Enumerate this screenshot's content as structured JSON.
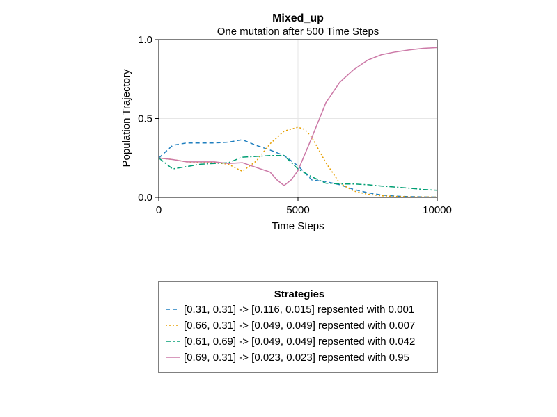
{
  "chart_data": {
    "type": "line",
    "title": "Mixed_up",
    "subtitle": "One mutation after 500 Time Steps",
    "xlabel": "Time Steps",
    "ylabel": "Population Trajectory",
    "xlim": [
      0,
      10000
    ],
    "ylim": [
      0,
      1.0
    ],
    "xticks": [
      "0",
      "5000",
      "10000"
    ],
    "yticks": [
      "0.0",
      "0.5",
      "1.0"
    ],
    "grid": true,
    "legend": {
      "title": "Strategies",
      "placement": "bottom"
    },
    "series": [
      {
        "name": "[0.31, 0.31] -> [0.116, 0.015] repsented with 0.001",
        "color": "#1f7fbf",
        "dash": "dashed",
        "x": [
          0,
          500,
          1000,
          1500,
          2000,
          2500,
          3000,
          3500,
          4000,
          4500,
          5000,
          5500,
          6000,
          6500,
          7000,
          7500,
          8000,
          8500,
          9000,
          9500,
          10000
        ],
        "y": [
          0.25,
          0.33,
          0.345,
          0.345,
          0.345,
          0.35,
          0.365,
          0.33,
          0.3,
          0.265,
          0.2,
          0.11,
          0.1,
          0.08,
          0.05,
          0.03,
          0.015,
          0.008,
          0.005,
          0.003,
          0.002
        ]
      },
      {
        "name": "[0.66, 0.31] -> [0.049, 0.049] repsented with 0.007",
        "color": "#e69f00",
        "dash": "dotted",
        "x": [
          0,
          500,
          1000,
          1500,
          2000,
          2500,
          3000,
          3500,
          4000,
          4500,
          5000,
          5250,
          5500,
          6000,
          6500,
          7000,
          7500,
          8000,
          8500,
          9000,
          9500,
          10000
        ],
        "y": [
          0.25,
          0.24,
          0.225,
          0.22,
          0.22,
          0.21,
          0.165,
          0.23,
          0.34,
          0.42,
          0.445,
          0.43,
          0.38,
          0.22,
          0.09,
          0.04,
          0.02,
          0.01,
          0.006,
          0.004,
          0.003,
          0.002
        ]
      },
      {
        "name": "[0.61, 0.69] -> [0.049, 0.049] repsented with 0.042",
        "color": "#009e73",
        "dash": "dashdot",
        "x": [
          0,
          500,
          1000,
          1500,
          2000,
          2500,
          3000,
          3500,
          4000,
          4500,
          5000,
          5500,
          6000,
          6500,
          7000,
          7500,
          8000,
          8500,
          9000,
          9500,
          10000
        ],
        "y": [
          0.25,
          0.18,
          0.195,
          0.21,
          0.215,
          0.22,
          0.255,
          0.26,
          0.265,
          0.265,
          0.18,
          0.13,
          0.09,
          0.085,
          0.085,
          0.08,
          0.072,
          0.065,
          0.058,
          0.05,
          0.045
        ]
      },
      {
        "name": "[0.69, 0.31] -> [0.023, 0.023] repsented with 0.95",
        "color": "#cc79a7",
        "dash": "solid",
        "x": [
          0,
          500,
          1000,
          1500,
          2000,
          2500,
          3000,
          3500,
          4000,
          4250,
          4500,
          4750,
          5000,
          5500,
          6000,
          6500,
          7000,
          7500,
          8000,
          8500,
          9000,
          9500,
          10000
        ],
        "y": [
          0.25,
          0.24,
          0.225,
          0.225,
          0.225,
          0.215,
          0.22,
          0.19,
          0.16,
          0.11,
          0.075,
          0.11,
          0.17,
          0.38,
          0.6,
          0.73,
          0.81,
          0.87,
          0.905,
          0.922,
          0.935,
          0.945,
          0.95
        ]
      }
    ]
  }
}
